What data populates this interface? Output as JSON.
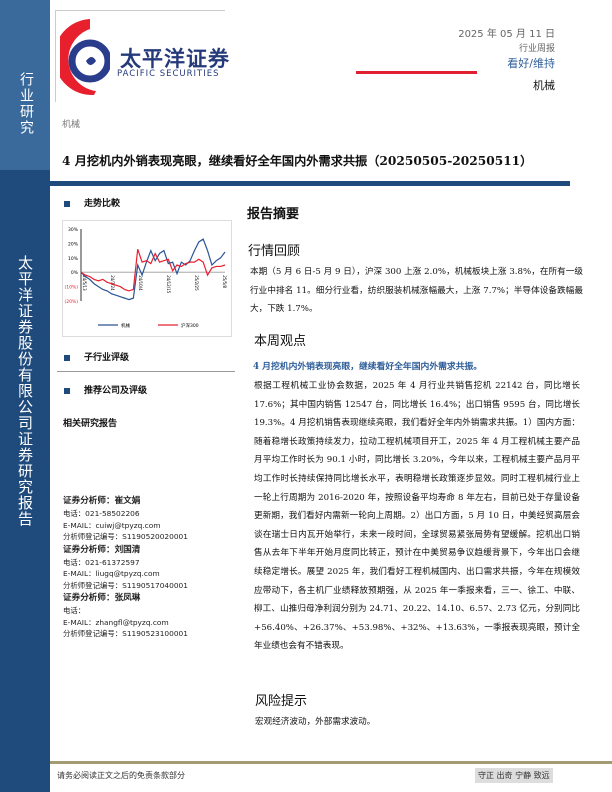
{
  "sidebar": {
    "top_label": "行业研究",
    "main_label": "太平洋证券股份有限公司证券研究报告"
  },
  "logo": {
    "cn": "太平洋证券",
    "en": "PACIFIC SECURITIES"
  },
  "header": {
    "date": "2025 年 05 月 11 日",
    "report_type": "行业周报",
    "rating": "看好/维持",
    "industry": "机械",
    "colors": {
      "rating": "#2f5e9a",
      "rule": "#e02030"
    }
  },
  "breadcrumb": "机械",
  "title": "4 月挖机内外销表现亮眼，继续看好全年国内外需求共振（20250505-20250511）",
  "left": {
    "trend_heading": "走势比較",
    "subindustry_heading": "子行业评级",
    "company_heading": "推荐公司及评级",
    "related_heading": "相关研究报告",
    "analysts": [
      {
        "title": "证券分析师：崔文娟",
        "phone": "电话：021-58502206",
        "email": "E-MAIL：cuiwj@tpyzq.com",
        "reg": "分析师登记编号：S1190520020001"
      },
      {
        "title": "证券分析师：刘国清",
        "phone": "电话：021-61372597",
        "email": "E-MAIL：liugq@tpyzq.com",
        "reg": "分析师登记编号：S1190517040001"
      },
      {
        "title": "证券分析师：张凤琳",
        "phone": "电话：",
        "email": "E-MAIL：zhangfl@tpyzq.com",
        "reg": "分析师登记编号：S1190523100001"
      }
    ]
  },
  "chart_data": {
    "type": "line",
    "yticks": [
      "30%",
      "20%",
      "10%",
      "0%",
      "(10%)",
      "(20%)"
    ],
    "ylim": [
      -20,
      30
    ],
    "xticks": [
      "24/5/13",
      "24/7/24",
      "24/10/4",
      "24/12/15",
      "25/2/25",
      "25/5/8"
    ],
    "series": [
      {
        "name": "机械",
        "color": "#2a5596",
        "values": [
          0,
          -3,
          -5,
          -8,
          -10,
          -12,
          -13,
          -15,
          -16,
          -17,
          -18,
          -19,
          -18,
          5,
          -2,
          7,
          15,
          8,
          13,
          15,
          6,
          7,
          -1,
          7,
          5,
          8,
          15,
          21,
          23,
          15,
          5,
          8,
          10,
          14
        ]
      },
      {
        "name": "沪深300",
        "color": "#e8202e",
        "values": [
          0,
          -2,
          -3,
          -5,
          -6,
          -5,
          -7,
          -8,
          -9,
          -10,
          -12,
          -13,
          -12,
          16,
          7,
          8,
          6,
          13,
          7,
          8,
          9,
          1,
          5,
          4,
          6,
          7,
          7,
          9,
          7,
          -2,
          3,
          4,
          4,
          5
        ]
      }
    ]
  },
  "main": {
    "summary_heading": "报告摘要",
    "market_heading": "行情回顾",
    "market_text": "本期（5 月 6 日-5 月 9 日），沪深 300 上涨 2.0%，机械板块上涨 3.8%，在所有一级行业中排名 11。细分行业看，纺织服装机械涨幅最大，上涨 7.7%；半导体设备跌幅最大，下跌 1.7%。",
    "view_heading": "本周观点",
    "view_highlight": "4 月挖机内外销表现亮眼，继续看好全年国内外需求共振。",
    "view_text": "根据工程机械工业协会数据，2025 年 4 月行业共销售挖机 22142 台，同比增长 17.6%；其中国内销售 12547 台，同比增长 16.4%；出口销售 9595 台，同比增长 19.3%。4 月挖机销售表现继续亮眼，我们看好全年内外销需求共振。1）国内方面：随着稳增长政策持续发力，拉动工程机械项目开工，2025 年 4 月工程机械主要产品月平均工作时长为 90.1 小时，同比增长 3.20%，今年以来，工程机械主要产品月平均工作时长持续保持同比增长水平，表明稳增长政策逐步显效。同时工程机械行业上一轮上行周期为 2016-2020 年，按照设备平均寿命 8 年左右，目前已处于存量设备更新期，我们看好内需新一轮向上周期。2）出口方面，5 月 10 日，中美经贸高层会谈在瑞士日内瓦开始举行，未来一段时间，全球贸易紧张局势有望缓解。挖机出口销售从去年下半年开始月度同比转正，预计在中美贸易争议趋缓背景下，今年出口会继续稳定增长。展望 2025 年，我们看好工程机械国内、出口需求共振，今年在规模效应带动下，各主机厂业绩释放预期强，从 2025 年一季报来看，三一、徐工、中联、柳工、山推归母净利润分别为 24.71、20.22、14.10、6.57、2.73 亿元，分别同比+56.40%、+26.37%、+53.98%、+32%、+13.63%，一季报表现亮眼，预计全年业绩也会有不错表现。",
    "risk_heading": "风险提示",
    "risk_text": "宏观经济波动，外部需求波动。"
  },
  "footer": {
    "disclaimer": "请务必阅读正文之后的免责条款部分",
    "motto": "守正 出奇 宁静 致远"
  }
}
